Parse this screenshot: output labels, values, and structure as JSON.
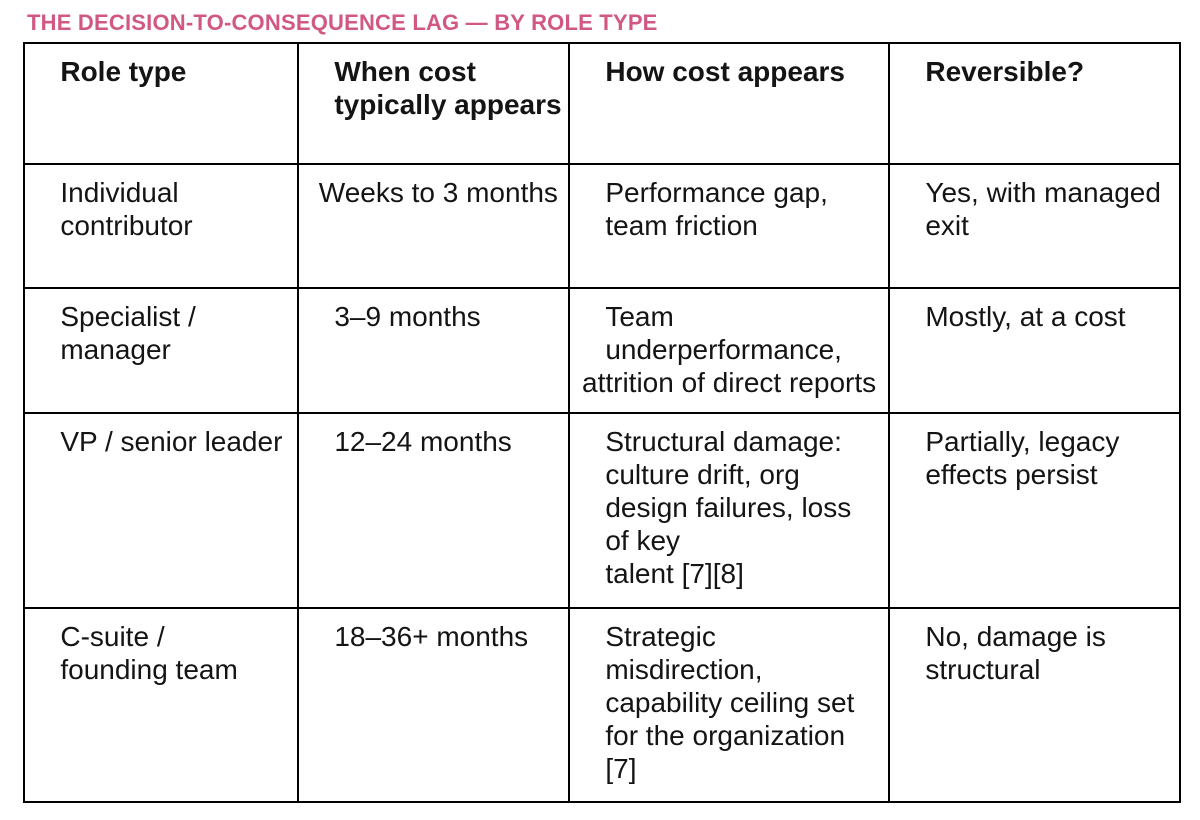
{
  "title": {
    "text": "THE DECISION-TO-CONSEQUENCE LAG — BY ROLE TYPE",
    "accent_color": "#d25884"
  },
  "colors": {
    "title_pink": "#d25884",
    "table_border": "#000000",
    "body_text": "#141414",
    "background": "#ffffff"
  },
  "table": {
    "headers": [
      "   Role type",
      "   When cost\n   typically appears",
      "   How cost appears",
      "   Reversible?"
    ],
    "rows": [
      {
        "cells": [
          "   Individual\n   contributor",
          " Weeks to 3 months",
          "   Performance gap,\n   team friction",
          "   Yes, with managed\n   exit"
        ]
      },
      {
        "cells": [
          "   Specialist /\n   manager",
          "   3–9 months",
          "   Team\n   underperformance,\nattrition of direct reports",
          "   Mostly, at a cost"
        ]
      },
      {
        "cells": [
          "   VP / senior leader",
          "   12–24 months",
          "   Structural damage:\n   culture drift, org\n   design failures, loss\n   of key\n   talent [7][8]",
          "   Partially, legacy\n   effects persist"
        ]
      },
      {
        "cells": [
          "   C-suite /\n   founding team",
          "   18–36+ months",
          "   Strategic\n   misdirection,\n   capability ceiling set\n   for the organization\n   [7]",
          "   No, damage is\n   structural"
        ]
      }
    ]
  }
}
